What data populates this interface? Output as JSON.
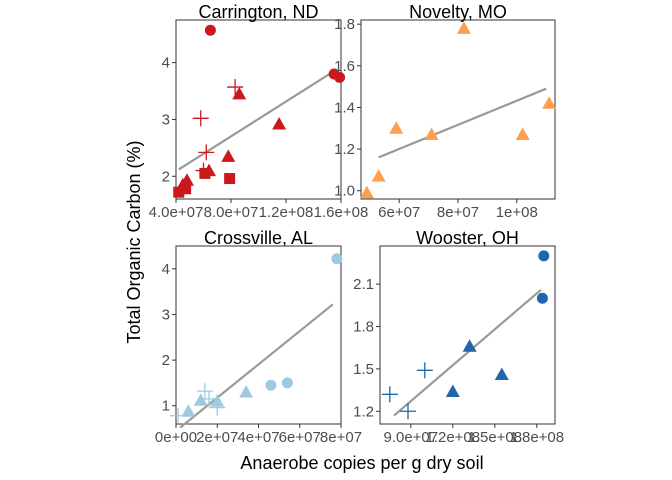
{
  "figure": {
    "ylabel": "Total Organic Carbon (%)",
    "xlabel": "Anaerobe copies per g dry soil"
  },
  "chart_data": [
    {
      "type": "scatter",
      "title": "Carrington, ND",
      "color": "#cb181d",
      "xlim": [
        40000000,
        160000000
      ],
      "ylim": [
        1.6,
        4.75
      ],
      "xticks": [
        40000000,
        80000000,
        120000000,
        160000000
      ],
      "xtick_labels": [
        "4.0e+07",
        "8.0e+07",
        "1.2e+08",
        "1.6e+08"
      ],
      "yticks": [
        2,
        3,
        4
      ],
      "ytick_labels": [
        "2",
        "3",
        "4"
      ],
      "fit": [
        [
          42000000,
          2.12
        ],
        [
          153000000,
          3.82
        ]
      ],
      "points": [
        {
          "x": 65000000,
          "y": 4.57,
          "shape": "circle"
        },
        {
          "x": 155000000,
          "y": 3.8,
          "shape": "circle"
        },
        {
          "x": 159000000,
          "y": 3.74,
          "shape": "circle"
        },
        {
          "x": 86000000,
          "y": 3.45,
          "shape": "triangle"
        },
        {
          "x": 115000000,
          "y": 2.92,
          "shape": "triangle"
        },
        {
          "x": 78000000,
          "y": 2.35,
          "shape": "triangle"
        },
        {
          "x": 64000000,
          "y": 2.1,
          "shape": "triangle"
        },
        {
          "x": 48000000,
          "y": 1.93,
          "shape": "triangle"
        },
        {
          "x": 45000000,
          "y": 1.85,
          "shape": "triangle"
        },
        {
          "x": 83000000,
          "y": 3.57,
          "shape": "plus"
        },
        {
          "x": 58000000,
          "y": 3.02,
          "shape": "plus"
        },
        {
          "x": 62000000,
          "y": 2.42,
          "shape": "plus"
        },
        {
          "x": 60000000,
          "y": 2.1,
          "shape": "plus"
        },
        {
          "x": 61000000,
          "y": 2.05,
          "shape": "square"
        },
        {
          "x": 79000000,
          "y": 1.96,
          "shape": "square"
        },
        {
          "x": 47000000,
          "y": 1.78,
          "shape": "square"
        },
        {
          "x": 42000000,
          "y": 1.72,
          "shape": "square"
        }
      ]
    },
    {
      "type": "scatter",
      "title": "Novelty, MO",
      "color": "#fd9f4f",
      "xlim": [
        47000000,
        113000000
      ],
      "ylim": [
        0.96,
        1.82
      ],
      "xticks": [
        60000000,
        80000000,
        100000000
      ],
      "xtick_labels": [
        "6e+07",
        "8e+07",
        "1e+08"
      ],
      "yticks": [
        1.0,
        1.2,
        1.4,
        1.6,
        1.8
      ],
      "ytick_labels": [
        "1.0",
        "1.2",
        "1.4",
        "1.6",
        "1.8"
      ],
      "fit": [
        [
          53000000,
          1.16
        ],
        [
          110000000,
          1.49
        ]
      ],
      "points": [
        {
          "x": 49000000,
          "y": 0.99,
          "shape": "triangle"
        },
        {
          "x": 53000000,
          "y": 1.07,
          "shape": "triangle"
        },
        {
          "x": 59000000,
          "y": 1.3,
          "shape": "triangle"
        },
        {
          "x": 71000000,
          "y": 1.27,
          "shape": "triangle"
        },
        {
          "x": 82000000,
          "y": 1.78,
          "shape": "triangle"
        },
        {
          "x": 102000000,
          "y": 1.27,
          "shape": "triangle"
        },
        {
          "x": 111000000,
          "y": 1.42,
          "shape": "triangle"
        }
      ]
    },
    {
      "type": "scatter",
      "title": "Crossville, AL",
      "color": "#9ecae1",
      "xlim": [
        0,
        80000000
      ],
      "ylim": [
        0.6,
        4.5
      ],
      "xticks": [
        0,
        20000000,
        40000000,
        60000000,
        80000000
      ],
      "xtick_labels": [
        "0e+00",
        "2e+07",
        "4e+07",
        "6e+07",
        "8e+07"
      ],
      "yticks": [
        1,
        2,
        3,
        4
      ],
      "ytick_labels": [
        "1",
        "2",
        "3",
        "4"
      ],
      "fit": [
        [
          2000000,
          0.52
        ],
        [
          76000000,
          3.22
        ]
      ],
      "points": [
        {
          "x": 78000000,
          "y": 4.22,
          "shape": "circle"
        },
        {
          "x": 54000000,
          "y": 1.5,
          "shape": "circle"
        },
        {
          "x": 46000000,
          "y": 1.45,
          "shape": "circle"
        },
        {
          "x": 34000000,
          "y": 1.3,
          "shape": "triangle"
        },
        {
          "x": 20000000,
          "y": 1.1,
          "shape": "triangle"
        },
        {
          "x": 12000000,
          "y": 1.12,
          "shape": "triangle"
        },
        {
          "x": 6000000,
          "y": 0.88,
          "shape": "triangle"
        },
        {
          "x": 14000000,
          "y": 1.32,
          "shape": "plus"
        },
        {
          "x": 16000000,
          "y": 1.15,
          "shape": "plus"
        },
        {
          "x": 20000000,
          "y": 0.96,
          "shape": "plus"
        },
        {
          "x": 1000000,
          "y": 0.78,
          "shape": "plus"
        }
      ]
    },
    {
      "type": "scatter",
      "title": "Wooster, OH",
      "color": "#2166ac",
      "xlim": [
        68000000,
        193000000
      ],
      "ylim": [
        1.11,
        2.37
      ],
      "xticks": [
        90000000,
        120000000,
        150000000,
        180000000
      ],
      "xtick_labels": [
        "9.0e+07",
        "1.2e+08",
        "1.5e+08",
        "1.8e+08"
      ],
      "yticks": [
        1.2,
        1.5,
        1.8,
        2.1
      ],
      "ytick_labels": [
        "1.2",
        "1.5",
        "1.8",
        "2.1"
      ],
      "fit": [
        [
          78000000,
          1.17
        ],
        [
          183000000,
          2.06
        ]
      ],
      "points": [
        {
          "x": 185000000,
          "y": 2.3,
          "shape": "circle"
        },
        {
          "x": 184000000,
          "y": 2.0,
          "shape": "circle"
        },
        {
          "x": 132000000,
          "y": 1.66,
          "shape": "triangle"
        },
        {
          "x": 155000000,
          "y": 1.46,
          "shape": "triangle"
        },
        {
          "x": 120000000,
          "y": 1.34,
          "shape": "triangle"
        },
        {
          "x": 100000000,
          "y": 1.49,
          "shape": "plus"
        },
        {
          "x": 75000000,
          "y": 1.32,
          "shape": "plus"
        },
        {
          "x": 88000000,
          "y": 1.2,
          "shape": "plus"
        }
      ]
    }
  ]
}
